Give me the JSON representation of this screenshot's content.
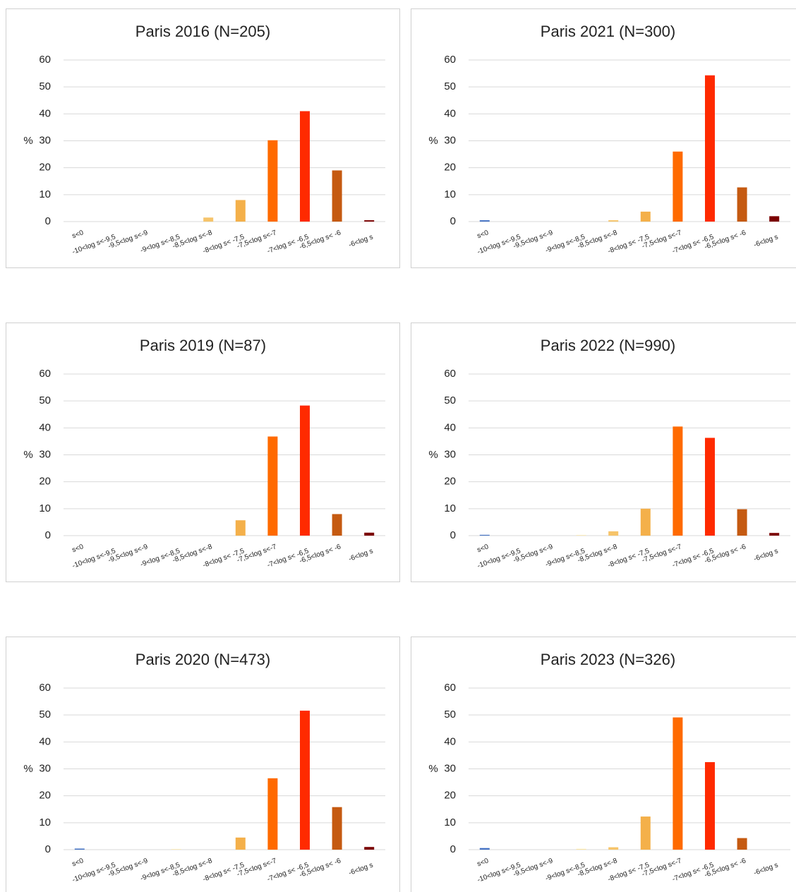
{
  "chart_data": [
    {
      "type": "bar",
      "title": "Paris 2016 (N=205)",
      "y_label": "%",
      "categories": [
        "s<0",
        "-10<log s<-9,5",
        "-9,5<log s<-9",
        "-9<log s<-8,5",
        "-8,5<log s<-8",
        "-8<log s< -7,5",
        "-7,5<log s<-7",
        "-7<log s< -6,5",
        "-6,5<log s< -6",
        "-6<log s"
      ],
      "values": [
        0,
        0,
        0,
        0,
        1.5,
        8,
        30.2,
        41,
        19,
        0.5
      ],
      "colors": [
        "#4472c4",
        "#5b9bd5",
        "#a9c4e8",
        "#fbe5a6",
        "#f6c46a",
        "#f4b04a",
        "#ff6a00",
        "#ff2a00",
        "#c55a11",
        "#7b0000"
      ],
      "ylim": [
        0,
        60
      ],
      "yticks": [
        0,
        10,
        20,
        30,
        40,
        50,
        60
      ],
      "grid": true
    },
    {
      "type": "bar",
      "title": "Paris 2021 (N=300)",
      "y_label": "%",
      "categories": [
        "s<0",
        "-10<log s<-9,5",
        "-9,5<log s<-9",
        "-9<log s<-8,5",
        "-8,5<log s<-8",
        "-8<log s< -7,5",
        "-7,5<log s<-7",
        "-7<log s< -6,5",
        "-6,5<log s< -6",
        "-6<log s"
      ],
      "values": [
        0.5,
        0,
        0,
        0,
        0.5,
        3.7,
        26,
        54.3,
        12.7,
        2
      ],
      "colors": [
        "#4472c4",
        "#5b9bd5",
        "#a9c4e8",
        "#fbe5a6",
        "#f6c46a",
        "#f4b04a",
        "#ff6a00",
        "#ff2a00",
        "#c55a11",
        "#7b0000"
      ],
      "ylim": [
        0,
        60
      ],
      "yticks": [
        0,
        10,
        20,
        30,
        40,
        50,
        60
      ],
      "grid": true
    },
    {
      "type": "bar",
      "title": "Paris 2019 (N=87)",
      "y_label": "%",
      "categories": [
        "s<0",
        "-10<log s<-9,5",
        "-9,5<log s<-9",
        "-9<log s<-8,5",
        "-8,5<log s<-8",
        "-8<log s< -7,5",
        "-7,5<log s<-7",
        "-7<log s< -6,5",
        "-6,5<log s< -6",
        "-6<log s"
      ],
      "values": [
        0,
        0,
        0,
        0,
        0,
        5.7,
        36.8,
        48.3,
        8,
        1.1
      ],
      "colors": [
        "#4472c4",
        "#5b9bd5",
        "#a9c4e8",
        "#fbe5a6",
        "#f6c46a",
        "#f4b04a",
        "#ff6a00",
        "#ff2a00",
        "#c55a11",
        "#7b0000"
      ],
      "ylim": [
        0,
        60
      ],
      "yticks": [
        0,
        10,
        20,
        30,
        40,
        50,
        60
      ],
      "grid": true
    },
    {
      "type": "bar",
      "title": "Paris 2022 (N=990)",
      "y_label": "%",
      "categories": [
        "s<0",
        "-10<log s<-9,5",
        "-9,5<log s<-9",
        "-9<log s<-8,5",
        "-8,5<log s<-8",
        "-8<log s< -7,5",
        "-7,5<log s<-7",
        "-7<log s< -6,5",
        "-6,5<log s< -6",
        "-6<log s"
      ],
      "values": [
        0.3,
        0,
        0,
        0.2,
        1.6,
        10,
        40.5,
        36.3,
        9.8,
        1
      ],
      "colors": [
        "#4472c4",
        "#5b9bd5",
        "#a9c4e8",
        "#fbe5a6",
        "#f6c46a",
        "#f4b04a",
        "#ff6a00",
        "#ff2a00",
        "#c55a11",
        "#7b0000"
      ],
      "ylim": [
        0,
        60
      ],
      "yticks": [
        0,
        10,
        20,
        30,
        40,
        50,
        60
      ],
      "grid": true
    },
    {
      "type": "bar",
      "title": "Paris 2020 (N=473)",
      "y_label": "%",
      "categories": [
        "s<0",
        "-10<log s<-9,5",
        "-9,5<log s<-9",
        "-9<log s<-8,5",
        "-8,5<log s<-8",
        "-8<log s< -7,5",
        "-7,5<log s<-7",
        "-7<log s< -6,5",
        "-6,5<log s< -6",
        "-6<log s"
      ],
      "values": [
        0.4,
        0,
        0,
        0.2,
        0,
        4.5,
        26.5,
        51.6,
        15.8,
        1
      ],
      "colors": [
        "#4472c4",
        "#5b9bd5",
        "#a9c4e8",
        "#fbe5a6",
        "#f6c46a",
        "#f4b04a",
        "#ff6a00",
        "#ff2a00",
        "#c55a11",
        "#7b0000"
      ],
      "ylim": [
        0,
        60
      ],
      "yticks": [
        0,
        10,
        20,
        30,
        40,
        50,
        60
      ],
      "grid": true
    },
    {
      "type": "bar",
      "title": "Paris 2023 (N=326)",
      "y_label": "%",
      "categories": [
        "s<0",
        "-10<log s<-9,5",
        "-9,5<log s<-9",
        "-9<log s<-8,5",
        "-8,5<log s<-8",
        "-8<log s< -7,5",
        "-7,5<log s<-7",
        "-7<log s< -6,5",
        "-6,5<log s< -6",
        "-6<log s"
      ],
      "values": [
        0.6,
        0,
        0,
        0.3,
        0.9,
        12.3,
        49.1,
        32.5,
        4.3,
        0
      ],
      "colors": [
        "#4472c4",
        "#5b9bd5",
        "#a9c4e8",
        "#fbe5a6",
        "#f6c46a",
        "#f4b04a",
        "#ff6a00",
        "#ff2a00",
        "#c55a11",
        "#7b0000"
      ],
      "ylim": [
        0,
        60
      ],
      "yticks": [
        0,
        10,
        20,
        30,
        40,
        50,
        60
      ],
      "grid": true
    }
  ]
}
